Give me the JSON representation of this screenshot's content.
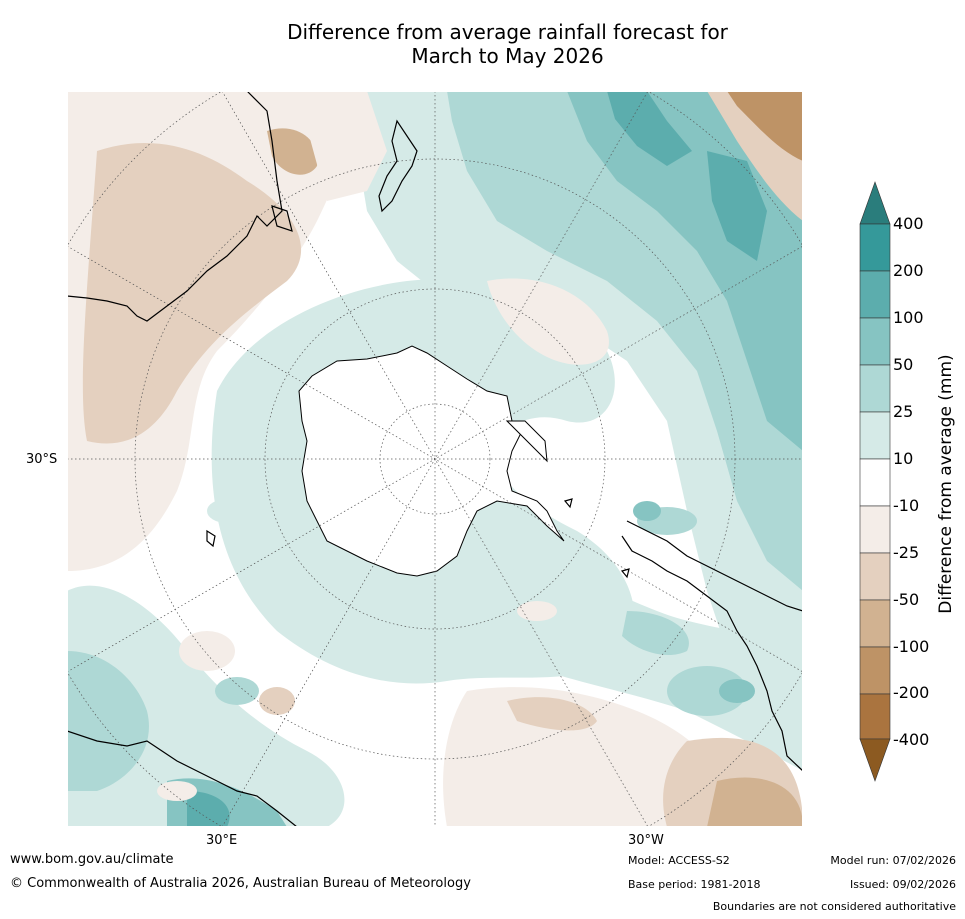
{
  "title": {
    "line1": "Difference from average rainfall forecast for",
    "line2": "March to May 2026"
  },
  "axis_labels": {
    "lat": "30°S",
    "lon_east": "30°E",
    "lon_west": "30°W"
  },
  "colorbar": {
    "title": "Difference from average (mm)",
    "ticks": [
      "400",
      "200",
      "100",
      "50",
      "25",
      "10",
      "-10",
      "-25",
      "-50",
      "-100",
      "-200",
      "-400"
    ],
    "colors": {
      "wet_extend": "#2a7d7c",
      "wet_400": "#35999a",
      "wet_200": "#5cadad",
      "wet_100": "#86c4c2",
      "wet_50": "#aed8d5",
      "wet_25": "#d5eae7",
      "neutral": "#ffffff",
      "dry_10": "#f4ede8",
      "dry_25": "#e4d0bf",
      "dry_50": "#d1b291",
      "dry_100": "#be9366",
      "dry_200": "#aa743f",
      "dry_extend": "#8c5a21"
    }
  },
  "footer": {
    "url": "www.bom.gov.au/climate",
    "copyright": "© Commonwealth of Australia 2026, Australian Bureau of Meteorology",
    "model": "Model: ACCESS-S2",
    "base_period": "Base period: 1981-2018",
    "model_run": "Model run: 07/02/2026",
    "issued": "Issued: 09/02/2026",
    "disclaimer": "Boundaries are not considered authoritative"
  }
}
